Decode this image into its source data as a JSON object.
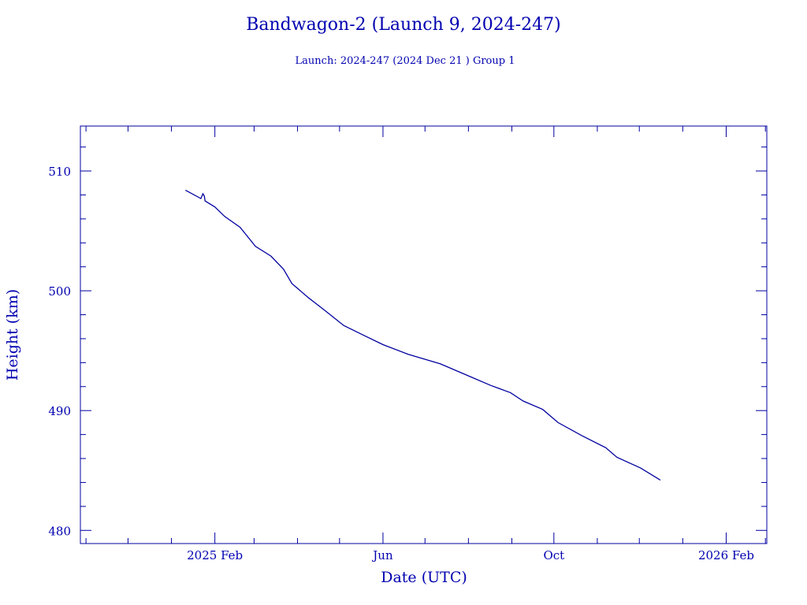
{
  "chart_data": {
    "type": "line",
    "title": "Bandwagon-2 (Launch 9, 2024-247)",
    "subtitle": "Launch: 2024-247  (2024 Dec 21 )  Group 1",
    "xlabel": "Date (UTC)",
    "ylabel": "Height (km)",
    "x_units": "days since 2025 Feb 1",
    "xlim": [
      -96,
      394
    ],
    "ylim": [
      478.9,
      513.75
    ],
    "x_ticks": [
      {
        "value": 0,
        "label": "2025 Feb"
      },
      {
        "value": 120,
        "label": "Jun"
      },
      {
        "value": 242,
        "label": "Oct"
      },
      {
        "value": 365,
        "label": "2026 Feb"
      }
    ],
    "x_minor_ticks": [
      -92,
      -62,
      -31,
      28,
      59,
      89,
      150,
      181,
      212,
      273,
      303,
      334,
      393
    ],
    "y_ticks": [
      {
        "value": 480,
        "label": "480"
      },
      {
        "value": 490,
        "label": "490"
      },
      {
        "value": 500,
        "label": "500"
      },
      {
        "value": 510,
        "label": "510"
      }
    ],
    "y_minor_step": 2,
    "color": "#0000a0",
    "series": [
      {
        "name": "Height",
        "x": [
          -21,
          -10,
          -8.5,
          -7.5,
          -7,
          0,
          7,
          18,
          29,
          40,
          49,
          55,
          67,
          78,
          92,
          106,
          120,
          138,
          161,
          183,
          197,
          211,
          220,
          234,
          245,
          262,
          279,
          287,
          304,
          318
        ],
        "y": [
          508.4,
          507.7,
          508.1,
          507.9,
          507.5,
          507.0,
          506.2,
          505.3,
          503.7,
          502.9,
          501.8,
          500.6,
          499.4,
          498.4,
          497.1,
          496.3,
          495.5,
          494.7,
          493.9,
          492.8,
          492.1,
          491.5,
          490.8,
          490.1,
          489.0,
          487.9,
          486.9,
          486.1,
          485.2,
          484.2
        ]
      }
    ]
  }
}
